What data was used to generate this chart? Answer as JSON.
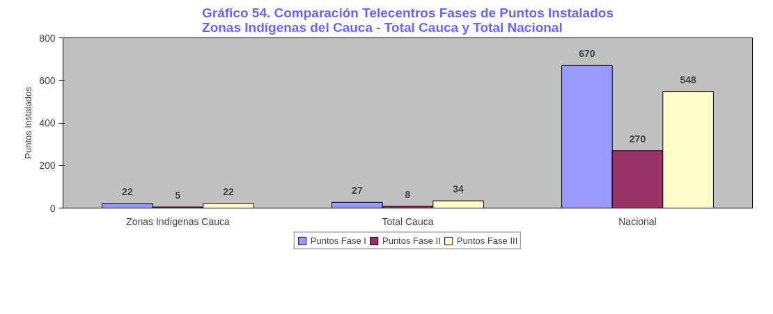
{
  "chart_data": {
    "type": "bar",
    "title": "Gráfico 54. Comparación Telecentros Fases de Puntos Instalados\nZonas Indígenas del Cauca - Total Cauca y Total Nacional",
    "ylabel": "Puntos Instalados",
    "categories": [
      "Zonas Indígenas Cauca",
      "Total Cauca",
      "Nacional"
    ],
    "series": [
      {
        "name": "Puntos Fase I",
        "color": "#9999ff",
        "values": [
          22,
          27,
          670
        ]
      },
      {
        "name": "Puntos Fase II",
        "color": "#993366",
        "values": [
          5,
          8,
          270
        ]
      },
      {
        "name": "Puntos Fase III",
        "color": "#ffffcc",
        "values": [
          22,
          34,
          548
        ]
      }
    ],
    "ylim": [
      0,
      800
    ],
    "yticks": [
      0,
      200,
      400,
      600,
      800
    ],
    "grid": false,
    "legend": "bottom",
    "data_labels": true
  }
}
